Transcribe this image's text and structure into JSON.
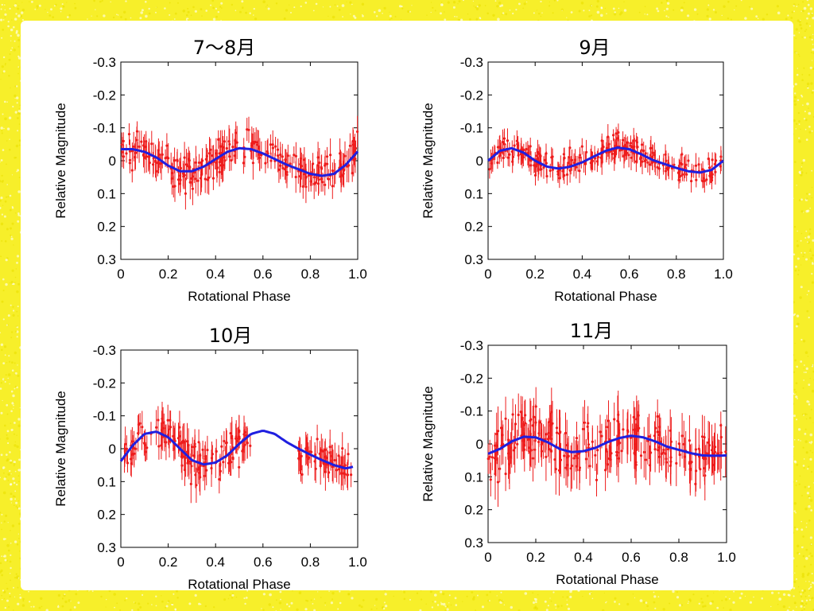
{
  "colors": {
    "border": "#f7ef2a",
    "background": "#ffffff",
    "observations": "#ee1c1c",
    "model_curve": "#1f1fe0"
  },
  "chart_data": [
    {
      "type": "scatter",
      "title": "7～8月",
      "xlabel": "Rotational Phase",
      "ylabel": "Relative Magnitude",
      "xlim": [
        0,
        1.0
      ],
      "ylim": [
        0.3,
        -0.3
      ],
      "y_inverted": true,
      "xticks": [
        "0",
        "0.2",
        "0.4",
        "0.6",
        "0.8",
        "1.0"
      ],
      "yticks": [
        "-0.3",
        "-0.2",
        "-0.1",
        "0",
        "0.1",
        "0.2",
        "0.3"
      ],
      "series": [
        {
          "kind": "points_with_errorbars",
          "scatter_sd": 0.05,
          "errorbar": 0.04
        },
        {
          "kind": "line",
          "x": [
            0,
            0.05,
            0.1,
            0.15,
            0.2,
            0.25,
            0.3,
            0.35,
            0.4,
            0.45,
            0.5,
            0.55,
            0.6,
            0.65,
            0.7,
            0.75,
            0.8,
            0.85,
            0.9,
            0.95,
            1.0
          ],
          "y": [
            -0.035,
            -0.035,
            -0.027,
            -0.01,
            0.015,
            0.032,
            0.032,
            0.018,
            -0.005,
            -0.027,
            -0.038,
            -0.035,
            -0.022,
            -0.005,
            0.012,
            0.026,
            0.04,
            0.046,
            0.04,
            0.012,
            -0.028
          ]
        }
      ]
    },
    {
      "type": "scatter",
      "title": "9月",
      "xlabel": "Rotational Phase",
      "ylabel": "Relative Magnitude",
      "xlim": [
        0,
        1.0
      ],
      "ylim": [
        0.3,
        -0.3
      ],
      "y_inverted": true,
      "xticks": [
        "0",
        "0.2",
        "0.4",
        "0.6",
        "0.8",
        "1.0"
      ],
      "yticks": [
        "-0.3",
        "-0.2",
        "-0.1",
        "0",
        "0.1",
        "0.2",
        "0.3"
      ],
      "series": [
        {
          "kind": "points_with_errorbars",
          "scatter_sd": 0.035,
          "errorbar": 0.03
        },
        {
          "kind": "line",
          "x": [
            0,
            0.05,
            0.1,
            0.15,
            0.2,
            0.25,
            0.3,
            0.35,
            0.4,
            0.45,
            0.5,
            0.55,
            0.6,
            0.65,
            0.7,
            0.75,
            0.8,
            0.85,
            0.9,
            0.95,
            1.0
          ],
          "y": [
            0.0,
            -0.03,
            -0.038,
            -0.025,
            0.0,
            0.018,
            0.024,
            0.018,
            0.005,
            -0.013,
            -0.03,
            -0.04,
            -0.035,
            -0.02,
            -0.002,
            0.01,
            0.022,
            0.032,
            0.036,
            0.028,
            0.0
          ]
        }
      ]
    },
    {
      "type": "scatter",
      "title": "10月",
      "xlabel": "Rotational Phase",
      "ylabel": "Relative Magnitude",
      "xlim": [
        0,
        1.0
      ],
      "ylim": [
        0.3,
        -0.3
      ],
      "y_inverted": true,
      "xticks": [
        "0",
        "0.2",
        "0.4",
        "0.6",
        "0.8",
        "1.0"
      ],
      "yticks": [
        "-0.3",
        "-0.2",
        "-0.1",
        "0",
        "0.1",
        "0.2",
        "0.3"
      ],
      "series": [
        {
          "kind": "points_with_errorbars",
          "scatter_sd": 0.055,
          "errorbar": 0.045,
          "x_gaps": [
            [
              0.55,
              0.75
            ]
          ]
        },
        {
          "kind": "line",
          "x": [
            0,
            0.05,
            0.1,
            0.15,
            0.2,
            0.25,
            0.3,
            0.35,
            0.4,
            0.45,
            0.5,
            0.55,
            0.6,
            0.65,
            0.7,
            0.75,
            0.8,
            0.85,
            0.9,
            0.95,
            0.98
          ],
          "y": [
            0.038,
            -0.01,
            -0.045,
            -0.052,
            -0.035,
            0.0,
            0.035,
            0.048,
            0.042,
            0.02,
            -0.015,
            -0.045,
            -0.055,
            -0.045,
            -0.02,
            0.0,
            0.018,
            0.035,
            0.05,
            0.06,
            0.055
          ]
        }
      ]
    },
    {
      "type": "scatter",
      "title": "11月",
      "xlabel": "Rotational Phase",
      "ylabel": "Relative Magnitude",
      "xlim": [
        0,
        1.0
      ],
      "ylim": [
        0.3,
        -0.3
      ],
      "y_inverted": true,
      "xticks": [
        "0",
        "0.2",
        "0.4",
        "0.6",
        "0.8",
        "1.0"
      ],
      "yticks": [
        "-0.3",
        "-0.2",
        "-0.1",
        "0",
        "0.1",
        "0.2",
        "0.3"
      ],
      "series": [
        {
          "kind": "points_with_errorbars",
          "scatter_sd": 0.08,
          "errorbar": 0.06
        },
        {
          "kind": "line",
          "x": [
            0,
            0.05,
            0.1,
            0.15,
            0.2,
            0.25,
            0.3,
            0.35,
            0.4,
            0.45,
            0.5,
            0.55,
            0.6,
            0.65,
            0.7,
            0.75,
            0.8,
            0.85,
            0.9,
            0.95,
            1.0
          ],
          "y": [
            0.03,
            0.015,
            -0.008,
            -0.022,
            -0.02,
            -0.005,
            0.015,
            0.025,
            0.022,
            0.012,
            -0.005,
            -0.018,
            -0.025,
            -0.02,
            -0.008,
            0.008,
            0.018,
            0.028,
            0.035,
            0.036,
            0.035
          ]
        }
      ]
    }
  ]
}
